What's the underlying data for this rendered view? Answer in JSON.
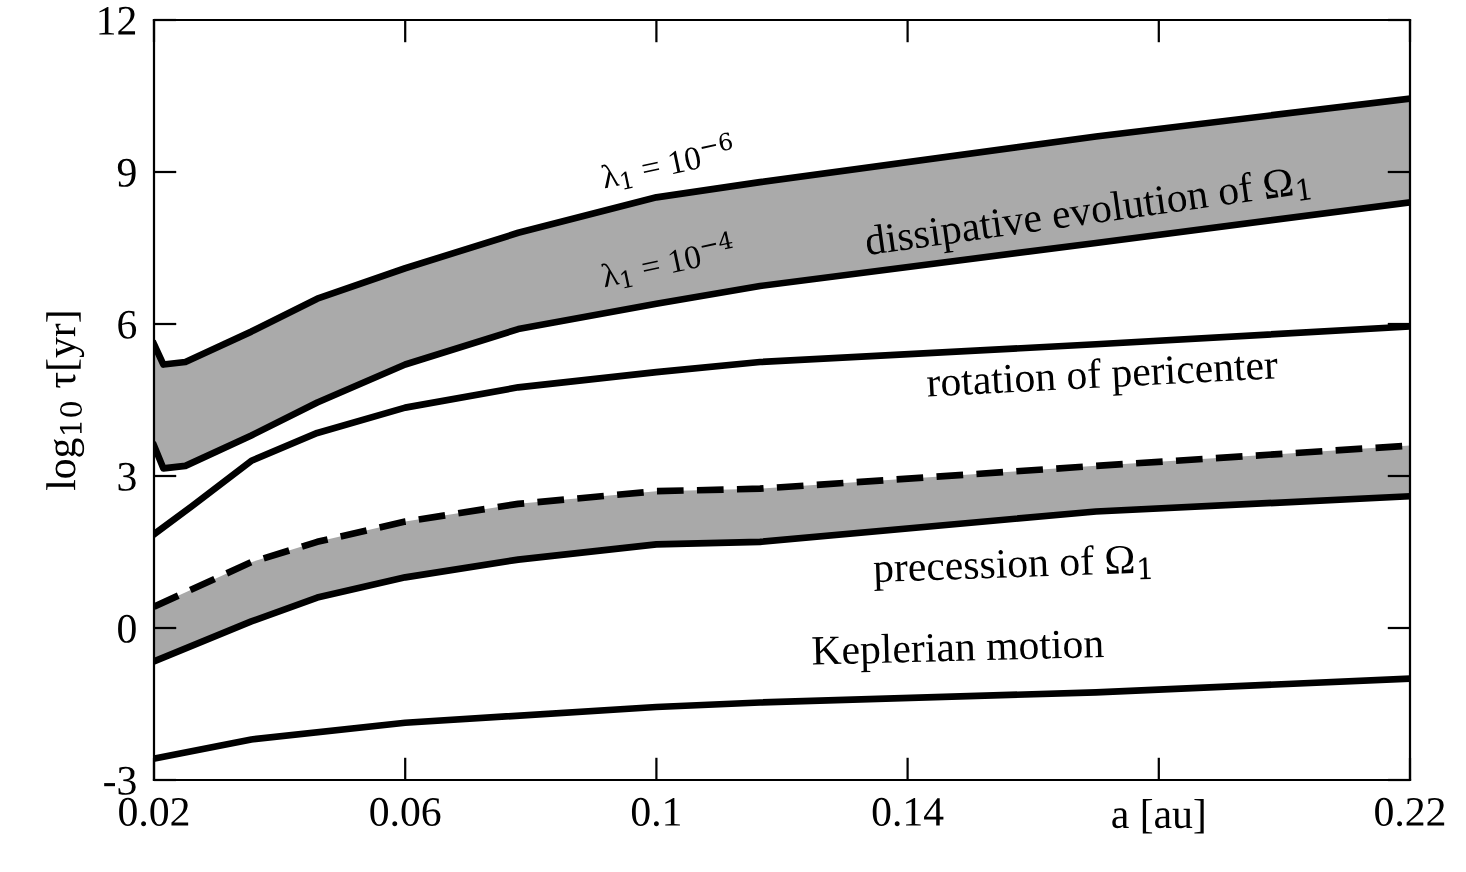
{
  "chart_data": {
    "type": "line",
    "xlabel": "a [au]",
    "ylabel": "log$_{10}$ τ[yr]",
    "xlim": [
      0.02,
      0.22
    ],
    "xticks": [
      0.02,
      0.06,
      0.1,
      0.14,
      {
        "value": 0.18,
        "label": null
      },
      0.22
    ],
    "ylim": [
      -3,
      12
    ],
    "yticks": [
      -3,
      0,
      3,
      6,
      9,
      12
    ],
    "grid": false,
    "legend": false,
    "series": [
      {
        "color": "#000000",
        "line_style": "solid",
        "x": [
          0.02,
          0.0215,
          0.025,
          0.0355,
          0.046,
          0.06,
          0.078,
          0.1,
          0.1165,
          0.17,
          0.22
        ],
        "values": [
          5.6,
          5.2,
          5.25,
          5.85,
          6.5,
          7.1,
          7.8,
          8.5,
          8.8,
          9.7,
          10.45
        ],
        "lower": [
          3.6,
          3.15,
          3.2,
          3.8,
          4.45,
          5.2,
          5.9,
          6.4,
          6.75,
          7.6,
          8.4
        ],
        "upper": [
          5.6,
          5.2,
          5.25,
          5.85,
          6.5,
          7.1,
          7.8,
          8.5,
          8.8,
          9.7,
          10.45
        ]
      },
      {
        "color": "#000000",
        "line_style": "solid",
        "x": [
          0.02,
          0.0215,
          0.025,
          0.0355,
          0.046,
          0.06,
          0.078,
          0.1,
          0.1165,
          0.17,
          0.22
        ],
        "values": [
          3.6,
          3.15,
          3.2,
          3.8,
          4.45,
          5.2,
          5.9,
          6.4,
          6.75,
          7.6,
          8.4
        ]
      },
      {
        "color": "#000000",
        "line_style": "solid",
        "x": [
          0.02,
          0.026,
          0.0355,
          0.046,
          0.06,
          0.078,
          0.1,
          0.1165,
          0.17,
          0.22
        ],
        "values": [
          1.85,
          2.4,
          3.3,
          3.85,
          4.35,
          4.75,
          5.05,
          5.25,
          5.6,
          5.95
        ]
      },
      {
        "color": "#000000",
        "line_style": "dashed",
        "x": [
          0.02,
          0.0355,
          0.046,
          0.06,
          0.078,
          0.1,
          0.1165,
          0.17,
          0.22
        ],
        "values": [
          0.42,
          1.3,
          1.7,
          2.1,
          2.45,
          2.7,
          2.75,
          3.2,
          3.6
        ],
        "lower": [
          -0.66,
          0.13,
          0.6,
          1.0,
          1.35,
          1.65,
          1.7,
          2.3,
          2.6
        ],
        "upper": [
          0.42,
          1.3,
          1.7,
          2.1,
          2.45,
          2.7,
          2.75,
          3.2,
          3.6
        ]
      },
      {
        "color": "#000000",
        "line_style": "solid",
        "x": [
          0.02,
          0.0355,
          0.046,
          0.06,
          0.078,
          0.1,
          0.1165,
          0.17,
          0.22
        ],
        "values": [
          -0.66,
          0.13,
          0.6,
          1.0,
          1.35,
          1.65,
          1.7,
          2.3,
          2.6
        ]
      },
      {
        "color": "#000000",
        "line_style": "solid",
        "x": [
          0.02,
          0.0355,
          0.06,
          0.1,
          0.1165,
          0.17,
          0.22
        ],
        "values": [
          -2.58,
          -2.2,
          -1.87,
          -1.56,
          -1.47,
          -1.27,
          -1.0
        ]
      }
    ],
    "annotations": [
      "λ$_{1}$ = 10$^{−6}$",
      "λ$_{1}$ = 10$^{−4}$",
      "dissipative evolution of Ω$_{1}$",
      "rotation of pericenter",
      "precession of Ω$_{1}$",
      "Keplerian motion"
    ]
  }
}
